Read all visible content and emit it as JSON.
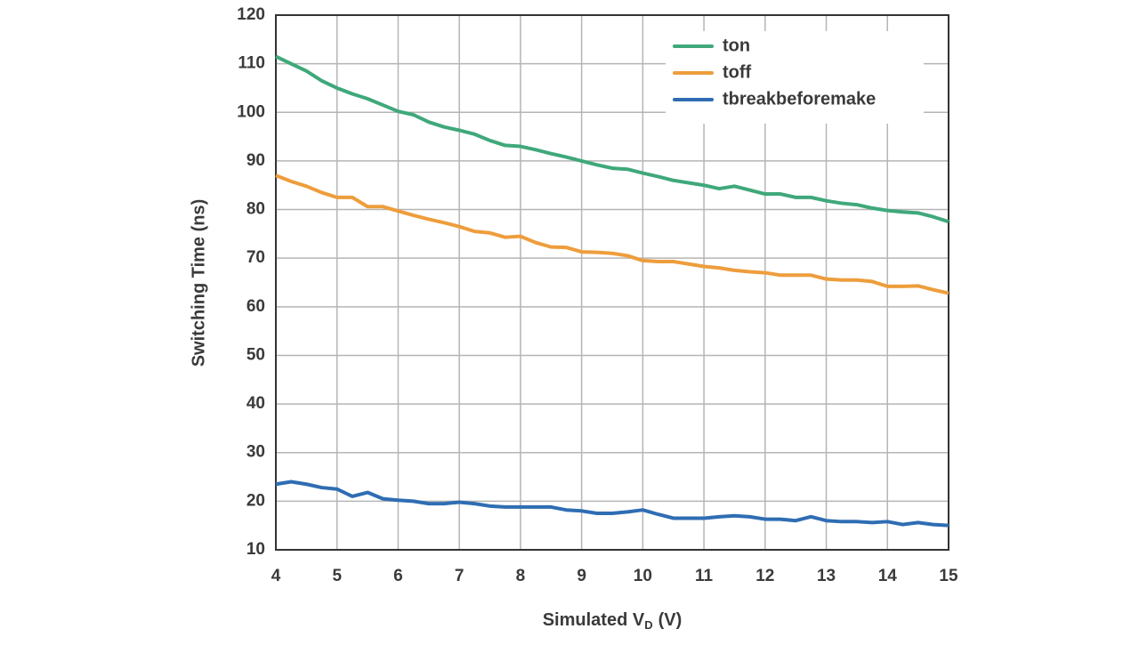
{
  "chart_data": {
    "type": "line",
    "y_label": "Switching Time (ns)",
    "x_label": {
      "text": "Simulated V",
      "subscript": "D",
      "suffix": "(V)"
    },
    "x": [
      4,
      4.25,
      4.5,
      4.75,
      5,
      5.25,
      5.5,
      5.75,
      6,
      6.25,
      6.5,
      6.75,
      7,
      7.25,
      7.5,
      7.75,
      8,
      8.25,
      8.5,
      8.75,
      9,
      9.25,
      9.5,
      9.75,
      10,
      10.25,
      10.5,
      10.75,
      11,
      11.25,
      11.5,
      11.75,
      12,
      12.25,
      12.5,
      12.75,
      13,
      13.25,
      13.5,
      13.75,
      14,
      14.25,
      14.5,
      14.75,
      15
    ],
    "series": [
      {
        "name": "ton",
        "color": "#3fa87a",
        "values": [
          111.5,
          110,
          108.5,
          106.5,
          105,
          103.8,
          102.8,
          101.5,
          100.2,
          99.5,
          98,
          97,
          96.3,
          95.5,
          94.2,
          93.2,
          93,
          92.3,
          91.5,
          90.8,
          90,
          89.2,
          88.5,
          88.3,
          87.5,
          86.8,
          86,
          85.5,
          85,
          84.3,
          84.8,
          84,
          83.2,
          83.2,
          82.5,
          82.5,
          81.8,
          81.3,
          81,
          80.3,
          79.8,
          79.5,
          79.3,
          78.5,
          77.5
        ]
      },
      {
        "name": "toff",
        "color": "#ee9d3c",
        "values": [
          87,
          85.8,
          84.8,
          83.5,
          82.5,
          82.5,
          80.6,
          80.6,
          79.7,
          78.8,
          78,
          77.3,
          76.5,
          75.5,
          75.2,
          74.3,
          74.5,
          73.2,
          72.3,
          72.2,
          71.3,
          71.2,
          71,
          70.5,
          69.5,
          69.3,
          69.3,
          68.8,
          68.3,
          68,
          67.5,
          67.2,
          67,
          66.5,
          66.5,
          66.5,
          65.7,
          65.5,
          65.5,
          65.2,
          64.2,
          64.2,
          64.3,
          63.5,
          62.8
        ]
      },
      {
        "name": "tbreakbeforemake",
        "color": "#2f6db3",
        "values": [
          23.5,
          24,
          23.5,
          22.8,
          22.5,
          21,
          21.8,
          20.5,
          20.2,
          20,
          19.5,
          19.5,
          19.8,
          19.5,
          19,
          18.8,
          18.8,
          18.8,
          18.8,
          18.2,
          18,
          17.5,
          17.5,
          17.8,
          18.2,
          17.3,
          16.5,
          16.5,
          16.5,
          16.8,
          17,
          16.8,
          16.3,
          16.3,
          16,
          16.8,
          16,
          15.8,
          15.8,
          15.6,
          15.8,
          15.2,
          15.6,
          15.2,
          15
        ]
      }
    ],
    "xlim": [
      4,
      15
    ],
    "xticks": [
      4,
      5,
      6,
      7,
      8,
      9,
      10,
      11,
      12,
      13,
      14,
      15
    ],
    "ylim": [
      10,
      120
    ],
    "yticks": [
      10,
      20,
      30,
      40,
      50,
      60,
      70,
      80,
      90,
      100,
      110,
      120
    ],
    "grid": true,
    "legend": "upper right"
  }
}
